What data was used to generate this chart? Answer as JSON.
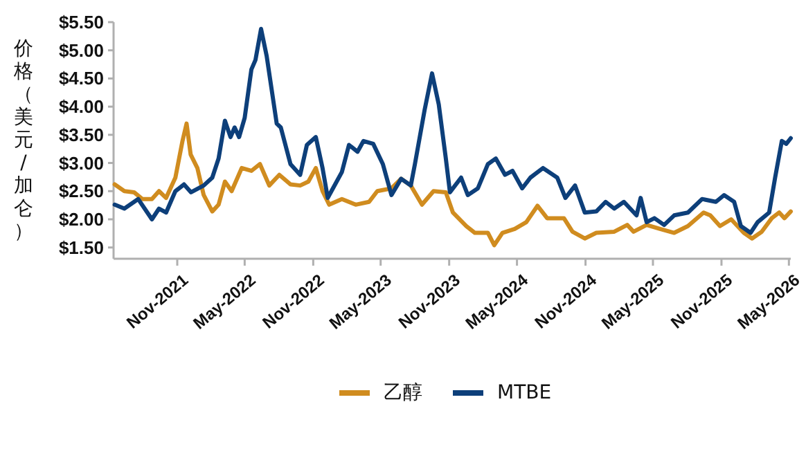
{
  "chart_data": {
    "type": "line",
    "ylabel": "价格（美元/加仑）",
    "xlim": [
      "2021-05-14",
      "2026-05-06"
    ],
    "xticks": [
      {
        "value": "2021-11-01",
        "label": "Nov-2021"
      },
      {
        "value": "2022-05-01",
        "label": "May-2022"
      },
      {
        "value": "2022-11-01",
        "label": "Nov-2022"
      },
      {
        "value": "2023-05-01",
        "label": "May-2023"
      },
      {
        "value": "2023-11-01",
        "label": "Nov-2023"
      },
      {
        "value": "2024-05-01",
        "label": "May-2024"
      },
      {
        "value": "2024-11-01",
        "label": "Nov-2024"
      },
      {
        "value": "2025-05-01",
        "label": "May-2025"
      },
      {
        "value": "2025-11-01",
        "label": "Nov-2025"
      },
      {
        "value": "2026-05-01",
        "label": "May-2026"
      }
    ],
    "ylim": [
      1.3,
      5.5
    ],
    "yticks": [
      {
        "value": 1.5,
        "label": "$1.50"
      },
      {
        "value": 2.0,
        "label": "$2.00"
      },
      {
        "value": 2.5,
        "label": "$2.50"
      },
      {
        "value": 3.0,
        "label": "$3.00"
      },
      {
        "value": 3.5,
        "label": "$3.50"
      },
      {
        "value": 4.0,
        "label": "$4.00"
      },
      {
        "value": 4.5,
        "label": "$4.50"
      },
      {
        "value": 5.0,
        "label": "$5.00"
      },
      {
        "value": 5.5,
        "label": "$5.50"
      }
    ],
    "grid": false,
    "legend": "bottom",
    "marker": "none",
    "line_style": "solid",
    "series": [
      {
        "name": "乙醇",
        "color": "#d08c1f",
        "x": [
          "2021-05-17",
          "2021-06-12",
          "2021-07-08",
          "2021-07-30",
          "2021-08-25",
          "2021-09-13",
          "2021-10-02",
          "2021-10-27",
          "2021-11-15",
          "2021-11-26",
          "2021-12-07",
          "2021-12-25",
          "2022-01-11",
          "2022-02-03",
          "2022-02-20",
          "2022-03-09",
          "2022-03-27",
          "2022-04-23",
          "2022-05-19",
          "2022-06-11",
          "2022-07-06",
          "2022-08-02",
          "2022-09-01",
          "2022-09-27",
          "2022-10-19",
          "2022-11-08",
          "2022-11-26",
          "2022-12-14",
          "2023-01-17",
          "2023-02-23",
          "2023-03-31",
          "2023-04-22",
          "2023-05-30",
          "2023-06-25",
          "2023-07-21",
          "2023-08-20",
          "2023-09-20",
          "2023-10-23",
          "2023-11-11",
          "2023-12-17",
          "2024-01-09",
          "2024-02-13",
          "2024-03-01",
          "2024-03-23",
          "2024-04-25",
          "2024-05-26",
          "2024-06-25",
          "2024-07-21",
          "2024-09-04",
          "2024-09-27",
          "2024-10-30",
          "2024-11-30",
          "2025-01-17",
          "2025-02-21",
          "2025-03-10",
          "2025-04-14",
          "2025-05-20",
          "2025-06-27",
          "2025-08-03",
          "2025-09-14",
          "2025-10-02",
          "2025-10-28",
          "2025-11-27",
          "2025-12-31",
          "2026-01-22",
          "2026-02-17",
          "2026-03-16",
          "2026-04-05",
          "2026-04-19",
          "2026-05-06"
        ],
        "values": [
          2.62,
          2.5,
          2.48,
          2.36,
          2.36,
          2.5,
          2.38,
          2.74,
          3.39,
          3.7,
          3.15,
          2.91,
          2.43,
          2.14,
          2.26,
          2.67,
          2.5,
          2.91,
          2.86,
          2.98,
          2.6,
          2.79,
          2.62,
          2.6,
          2.67,
          2.91,
          2.5,
          2.26,
          2.36,
          2.26,
          2.31,
          2.5,
          2.55,
          2.72,
          2.6,
          2.26,
          2.5,
          2.48,
          2.12,
          1.88,
          1.76,
          1.76,
          1.54,
          1.76,
          1.83,
          1.95,
          2.24,
          2.02,
          2.02,
          1.78,
          1.66,
          1.76,
          1.78,
          1.9,
          1.78,
          1.9,
          1.83,
          1.76,
          1.88,
          2.12,
          2.07,
          1.88,
          2.0,
          1.76,
          1.66,
          1.78,
          2.02,
          2.12,
          2.02,
          2.14
        ]
      },
      {
        "name": "MTBE",
        "color": "#0d3f7a",
        "x": [
          "2021-05-17",
          "2021-06-12",
          "2021-07-19",
          "2021-08-25",
          "2021-09-13",
          "2021-10-02",
          "2021-10-27",
          "2021-11-19",
          "2021-12-08",
          "2022-01-11",
          "2022-02-03",
          "2022-02-20",
          "2022-03-09",
          "2022-03-24",
          "2022-04-04",
          "2022-04-16",
          "2022-05-01",
          "2022-05-19",
          "2022-05-30",
          "2022-06-14",
          "2022-06-29",
          "2022-07-26",
          "2022-08-06",
          "2022-09-01",
          "2022-09-27",
          "2022-10-15",
          "2022-11-08",
          "2022-11-26",
          "2022-12-10",
          "2023-01-17",
          "2023-02-05",
          "2023-02-28",
          "2023-03-16",
          "2023-04-11",
          "2023-05-07",
          "2023-05-30",
          "2023-06-25",
          "2023-07-21",
          "2023-08-01",
          "2023-08-27",
          "2023-09-16",
          "2023-10-04",
          "2023-10-23",
          "2023-11-03",
          "2023-12-03",
          "2023-12-21",
          "2024-01-17",
          "2024-02-13",
          "2024-03-05",
          "2024-03-30",
          "2024-04-19",
          "2024-05-15",
          "2024-06-06",
          "2024-07-10",
          "2024-08-17",
          "2024-09-08",
          "2024-10-04",
          "2024-10-30",
          "2024-11-30",
          "2024-12-25",
          "2025-01-17",
          "2025-02-12",
          "2025-03-18",
          "2025-03-29",
          "2025-04-14",
          "2025-05-05",
          "2025-05-31",
          "2025-06-27",
          "2025-08-03",
          "2025-09-10",
          "2025-10-17",
          "2025-11-08",
          "2025-12-05",
          "2025-12-23",
          "2026-01-18",
          "2026-02-06",
          "2026-03-09",
          "2026-03-25",
          "2026-04-12",
          "2026-04-24",
          "2026-05-06"
        ],
        "values": [
          2.26,
          2.19,
          2.36,
          2.0,
          2.19,
          2.12,
          2.5,
          2.62,
          2.48,
          2.6,
          2.74,
          3.08,
          3.75,
          3.46,
          3.63,
          3.46,
          3.8,
          4.66,
          4.83,
          5.38,
          4.9,
          3.7,
          3.63,
          2.98,
          2.79,
          3.32,
          3.46,
          2.91,
          2.38,
          2.84,
          3.32,
          3.2,
          3.39,
          3.34,
          2.98,
          2.43,
          2.72,
          2.6,
          2.98,
          3.94,
          4.59,
          4.04,
          3.08,
          2.48,
          2.74,
          2.43,
          2.55,
          2.98,
          3.08,
          2.79,
          2.86,
          2.55,
          2.74,
          2.91,
          2.74,
          2.38,
          2.6,
          2.12,
          2.14,
          2.31,
          2.19,
          2.31,
          2.07,
          2.38,
          1.95,
          2.02,
          1.9,
          2.07,
          2.12,
          2.36,
          2.31,
          2.43,
          2.31,
          1.88,
          1.76,
          1.95,
          2.12,
          2.74,
          3.39,
          3.34,
          3.44
        ]
      }
    ]
  }
}
